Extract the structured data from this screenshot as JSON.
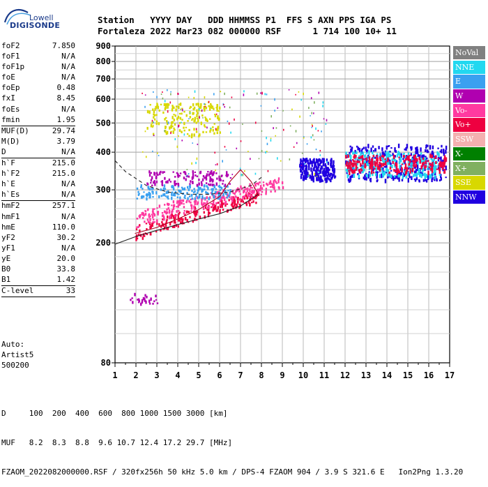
{
  "logo": {
    "line1": "Lowell",
    "line2": "DIGISONDE"
  },
  "header": {
    "row1": "Station   YYYY DAY   DDD HHMMSS P1  FFS S AXN PPS IGA PS",
    "row2": "Fortaleza 2022 Mar23 082 000000 RSF      1 714 100 10+ 11"
  },
  "params": [
    {
      "label": "foF2",
      "value": "7.850"
    },
    {
      "label": "foF1",
      "value": "N/A"
    },
    {
      "label": "foF1p",
      "value": "N/A"
    },
    {
      "label": "foE",
      "value": "N/A"
    },
    {
      "label": "foEp",
      "value": "0.48"
    },
    {
      "label": "fxI",
      "value": "8.45"
    },
    {
      "label": "foEs",
      "value": "N/A"
    },
    {
      "label": "fmin",
      "value": "1.95"
    },
    {
      "label": "MUF(D)",
      "value": "29.74",
      "line": true
    },
    {
      "label": "M(D)",
      "value": "3.79"
    },
    {
      "label": "D",
      "value": "N/A"
    },
    {
      "label": "h`F",
      "value": "215.0",
      "line": true
    },
    {
      "label": "h`F2",
      "value": "215.0"
    },
    {
      "label": "h`E",
      "value": "N/A"
    },
    {
      "label": "h`Es",
      "value": "N/A"
    },
    {
      "label": "hmF2",
      "value": "257.1",
      "line": true
    },
    {
      "label": "hmF1",
      "value": "N/A"
    },
    {
      "label": "hmE",
      "value": "110.0"
    },
    {
      "label": "yF2",
      "value": "30.2"
    },
    {
      "label": "yF1",
      "value": "N/A"
    },
    {
      "label": "yE",
      "value": "20.0"
    },
    {
      "label": "B0",
      "value": "33.8"
    },
    {
      "label": "B1",
      "value": "1.42"
    },
    {
      "label": "C-level",
      "value": "33",
      "line": true
    }
  ],
  "auto": {
    "line1": "Auto:",
    "line2": "Artist5",
    "line3": "500200"
  },
  "legend": [
    {
      "label": "NoVal",
      "color": "#808080"
    },
    {
      "label": "NNE",
      "color": "#22d8f0"
    },
    {
      "label": "E",
      "color": "#3aa0f0"
    },
    {
      "label": "W",
      "color": "#b000b0"
    },
    {
      "label": "Vo-",
      "color": "#ff3aa0"
    },
    {
      "label": "Vo+",
      "color": "#ee0040"
    },
    {
      "label": "SSW",
      "color": "#f4b0b0"
    },
    {
      "label": "X-",
      "color": "#008000"
    },
    {
      "label": "X+",
      "color": "#80b060"
    },
    {
      "label": "SSE",
      "color": "#d8d800"
    },
    {
      "label": "NNW",
      "color": "#2000e0"
    }
  ],
  "footer": {
    "d_row": "D     100  200  400  600  800 1000 1500 3000 [km]",
    "muf_row": "MUF   8.2  8.3  8.8  9.6 10.7 12.4 17.2 29.7 [MHz]",
    "file_row": "FZAOM_2022082000000.RSF / 320fx256h 50 kHz 5.0 km / DPS-4 FZAOM 904 / 3.9 S 321.6 E   Ion2Png 1.3.20"
  },
  "chart_data": {
    "type": "scatter",
    "title": "",
    "xlabel": "",
    "ylabel": "",
    "xlim": [
      1,
      17
    ],
    "ylim": [
      80,
      900
    ],
    "x_ticks": [
      1,
      2,
      3,
      4,
      5,
      6,
      7,
      8,
      9,
      10,
      11,
      12,
      13,
      14,
      15,
      16,
      17
    ],
    "y_ticks": [
      80,
      200,
      300,
      400,
      500,
      600,
      700,
      800,
      900
    ],
    "grid": true,
    "x_scale": "linear",
    "y_scale": "logarithmic",
    "clusters": [
      {
        "name": "F2 trace low",
        "x": [
          1.95,
          7.85
        ],
        "y": [
          215,
          290
        ],
        "color": "#ee0040"
      },
      {
        "name": "F2 trace mid",
        "x": [
          2.0,
          9.0
        ],
        "y": [
          240,
          320
        ],
        "color": "#ff3aa0"
      },
      {
        "name": "cyan layer",
        "x": [
          2.0,
          6.5
        ],
        "y": [
          280,
          310
        ],
        "color": "#3aa0f0"
      },
      {
        "name": "purple layer",
        "x": [
          2.5,
          6.5
        ],
        "y": [
          310,
          345
        ],
        "color": "#b000b0"
      },
      {
        "name": "yellow upper cluster",
        "x": [
          2.5,
          6.0
        ],
        "y": [
          450,
          580
        ],
        "color": "#d8d800"
      },
      {
        "name": "blue band",
        "x": [
          9.8,
          11.5
        ],
        "y": [
          320,
          380
        ],
        "color": "#2000e0"
      },
      {
        "name": "multihop blue",
        "x": [
          12.0,
          16.8
        ],
        "y": [
          320,
          420
        ],
        "color": "#2000e0"
      },
      {
        "name": "multihop cyan",
        "x": [
          12.0,
          16.5
        ],
        "y": [
          330,
          400
        ],
        "color": "#22d8f0"
      },
      {
        "name": "multihop red",
        "x": [
          12.0,
          16.8
        ],
        "y": [
          340,
          390
        ],
        "color": "#ee0040"
      },
      {
        "name": "low echo",
        "x": [
          1.7,
          3.0
        ],
        "y": [
          125,
          135
        ],
        "color": "#b000b0"
      }
    ],
    "curves": [
      {
        "name": "profile",
        "style": "solid",
        "x": [
          1.0,
          2.0,
          3.0,
          4.0,
          5.0,
          6.0,
          7.0,
          7.85
        ],
        "y": [
          198,
          210,
          220,
          230,
          240,
          250,
          265,
          290
        ]
      },
      {
        "name": "trace-fit",
        "style": "solid",
        "x": [
          1.95,
          3.0,
          4.0,
          5.0,
          6.0,
          6.5,
          7.0,
          7.5,
          7.85
        ],
        "y": [
          215,
          225,
          240,
          258,
          285,
          320,
          350,
          320,
          290
        ]
      },
      {
        "name": "dashed",
        "style": "dashed",
        "x": [
          1.0,
          1.5,
          2.5,
          3.5,
          4.5,
          5.5,
          6.5,
          7.5,
          8.0
        ],
        "y": [
          375,
          345,
          310,
          295,
          290,
          290,
          295,
          310,
          330
        ]
      }
    ]
  }
}
